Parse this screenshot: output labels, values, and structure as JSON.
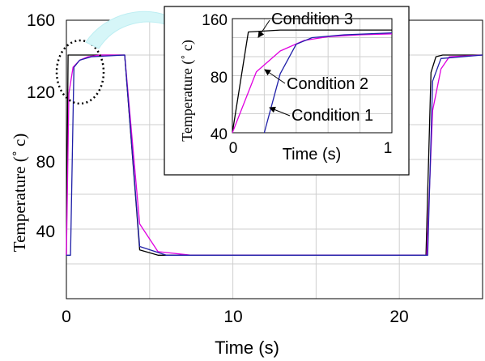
{
  "chart_data": [
    {
      "type": "line",
      "xlabel": "Time (s)",
      "ylabel": "Temperature (˚ c)",
      "xlim": [
        0,
        25
      ],
      "ylim": [
        0,
        160
      ],
      "xticks": [
        "0",
        "10",
        "20"
      ],
      "yticks": [
        "40",
        "80",
        "120",
        "160"
      ],
      "grid": true,
      "series": [
        {
          "name": "Condition 3",
          "color": "#000000",
          "x": [
            0,
            0.1,
            0.3,
            3.5,
            4.4,
            5.5,
            21.5,
            21.6,
            21.9,
            22.2,
            22.6,
            25
          ],
          "y": [
            25,
            140,
            140,
            140,
            28,
            25,
            25,
            25,
            130,
            139,
            140,
            140
          ]
        },
        {
          "name": "Condition 2",
          "color": "#e000e0",
          "x": [
            0,
            0.15,
            0.4,
            0.8,
            1.3,
            2.0,
            3.5,
            4.4,
            5.5,
            7.5,
            21.5,
            21.65,
            22.0,
            22.5,
            23.0,
            25
          ],
          "y": [
            25,
            118,
            133,
            137,
            139,
            140,
            140,
            43,
            27,
            25,
            25,
            25,
            108,
            132,
            139,
            140
          ]
        },
        {
          "name": "Condition 1",
          "color": "#1f1fa8",
          "x": [
            0,
            0.25,
            0.45,
            0.8,
            1.5,
            3.5,
            4.4,
            6.0,
            21.5,
            21.7,
            22.0,
            22.5,
            25
          ],
          "y": [
            25,
            25,
            133,
            137,
            139,
            140,
            30,
            25,
            25,
            25,
            125,
            138,
            140
          ]
        }
      ]
    },
    {
      "type": "line",
      "xlabel": "Time (s)",
      "ylabel": "Temperature (˚ c)",
      "xlim": [
        0,
        1
      ],
      "ylim": [
        40,
        160
      ],
      "xticks": [
        "0",
        "1"
      ],
      "yticks": [
        "40",
        "80",
        "160"
      ],
      "grid": true,
      "annotations": [
        "Condition 3",
        "Condition 2",
        "Condition 1"
      ],
      "series": [
        {
          "name": "Condition 3",
          "color": "#000000",
          "x": [
            0,
            0.1,
            0.3,
            0.5,
            0.7,
            1.0
          ],
          "y": [
            40,
            146,
            148,
            148,
            148,
            148
          ]
        },
        {
          "name": "Condition 2",
          "color": "#e000e0",
          "x": [
            0,
            0.15,
            0.3,
            0.45,
            0.6,
            0.8,
            1.0
          ],
          "y": [
            40,
            104,
            126,
            137,
            141,
            143,
            144
          ]
        },
        {
          "name": "Condition 1",
          "color": "#1f1fa8",
          "x": [
            0.2,
            0.3,
            0.4,
            0.5,
            0.7,
            1.0
          ],
          "y": [
            40,
            102,
            133,
            140,
            143,
            145
          ]
        }
      ]
    }
  ]
}
